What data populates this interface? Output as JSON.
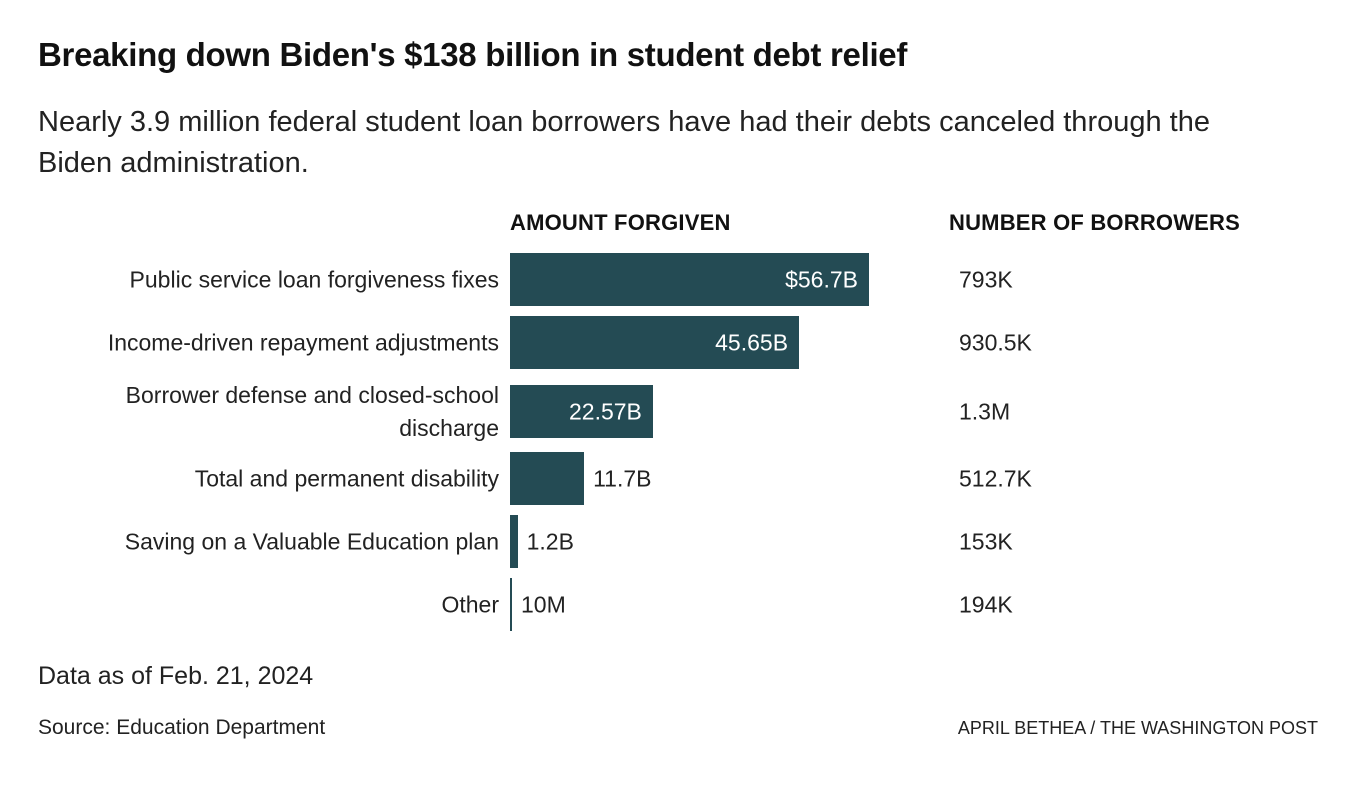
{
  "chart_data": {
    "type": "bar",
    "title": "Breaking down Biden's $138 billion in student debt relief",
    "subtitle": "Nearly 3.9 million federal student loan borrowers have had their debts canceled through the Biden administration.",
    "value_header": "AMOUNT FORGIVEN",
    "borrowers_header": "NUMBER OF BORROWERS",
    "categories": [
      "Public service loan forgiveness fixes",
      "Income-driven repayment adjustments",
      "Borrower defense and closed-school discharge",
      "Total and permanent disability",
      "Saving on a Valuable Education plan",
      "Other"
    ],
    "values": [
      56.7,
      45.65,
      22.57,
      11.7,
      1.2,
      0.01
    ],
    "value_labels": [
      "$56.7B",
      "45.65B",
      "22.57B",
      "11.7B",
      "1.2B",
      "10M"
    ],
    "borrowers": [
      "793K",
      "930.5K",
      "1.3M",
      "512.7K",
      "153K",
      "194K"
    ],
    "color": "#244b54",
    "note": "Data as of Feb. 21, 2024",
    "source": "Source: Education Department",
    "credit": "APRIL BETHEA / THE WASHINGTON POST"
  }
}
